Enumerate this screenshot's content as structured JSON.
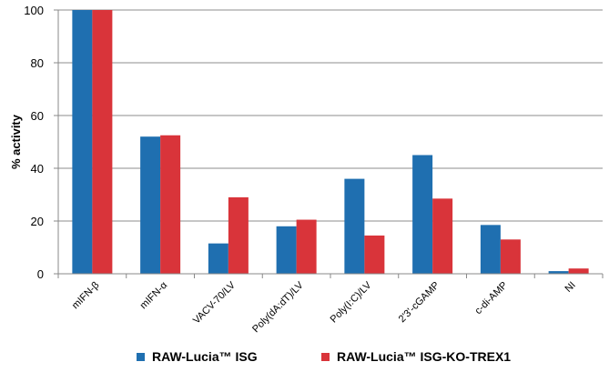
{
  "chart_data": {
    "type": "bar",
    "ylabel": "% activity",
    "xlabel": "",
    "ylim": [
      0,
      100
    ],
    "yticks": [
      0,
      20,
      40,
      60,
      80,
      100
    ],
    "grid": true,
    "legend_position": "bottom",
    "categories": [
      "mIFN-β",
      "mIFN-α",
      "VACV-70/LV",
      "Poly(dA:dT)/LV",
      "Poly(I:C)/LV",
      "2'3'-cGAMP",
      "c-di-AMP",
      "NI"
    ],
    "series": [
      {
        "name": "RAW-Lucia™ ISG",
        "color": "#1f6fb0",
        "values": [
          100,
          52,
          11.5,
          18,
          36,
          45,
          18.5,
          1
        ]
      },
      {
        "name": "RAW-Lucia™ ISG-KO-TREX1",
        "color": "#d9343a",
        "values": [
          100,
          52.5,
          29,
          20.5,
          14.5,
          28.5,
          13,
          2
        ]
      }
    ]
  }
}
